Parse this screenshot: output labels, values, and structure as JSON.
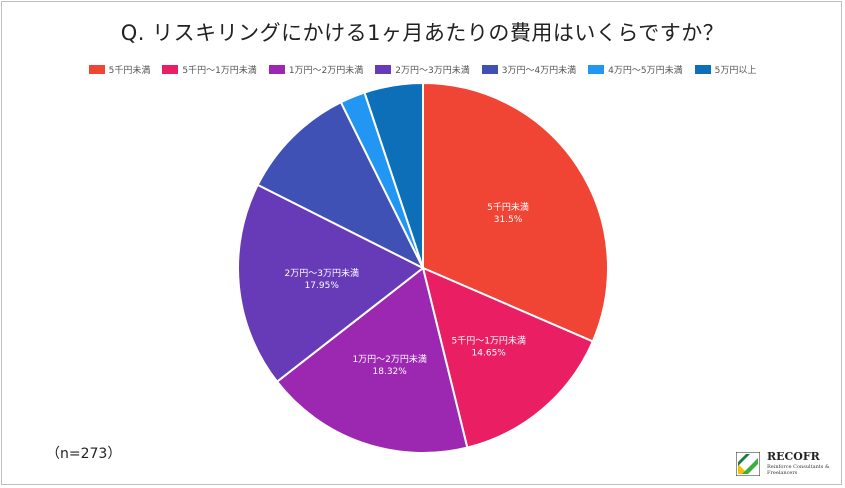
{
  "title": "Q. リスキリングにかける1ヶ月あたりの費用はいくらですか？",
  "note": "（n=273）",
  "logo": {
    "name": "RECOFR",
    "tagline": "Reinforce Consultants & Freelancers"
  },
  "chart_data": {
    "type": "pie",
    "title": "Q. リスキリングにかける1ヶ月あたりの費用はいくらですか？",
    "legend_position": "top",
    "slices": [
      {
        "label": "5千円未満",
        "value": 31.5,
        "value_label": "31.5%",
        "color": "#f04435",
        "show_label": true
      },
      {
        "label": "5千円～1万円未満",
        "value": 14.65,
        "value_label": "14.65%",
        "color": "#e91e63",
        "show_label": true
      },
      {
        "label": "1万円～2万円未満",
        "value": 18.32,
        "value_label": "18.32%",
        "color": "#9c27b0",
        "show_label": true
      },
      {
        "label": "2万円～3万円未満",
        "value": 17.95,
        "value_label": "17.95%",
        "color": "#673ab7",
        "show_label": true
      },
      {
        "label": "3万円～4万円未満",
        "value": 10.26,
        "value_label": "",
        "color": "#3f51b5",
        "show_label": false
      },
      {
        "label": "4万円～5万円未満",
        "value": 2.2,
        "value_label": "",
        "color": "#2196f3",
        "show_label": false
      },
      {
        "label": "5万円以上",
        "value": 5.12,
        "value_label": "",
        "color": "#0d6fb8",
        "show_label": false
      }
    ]
  }
}
